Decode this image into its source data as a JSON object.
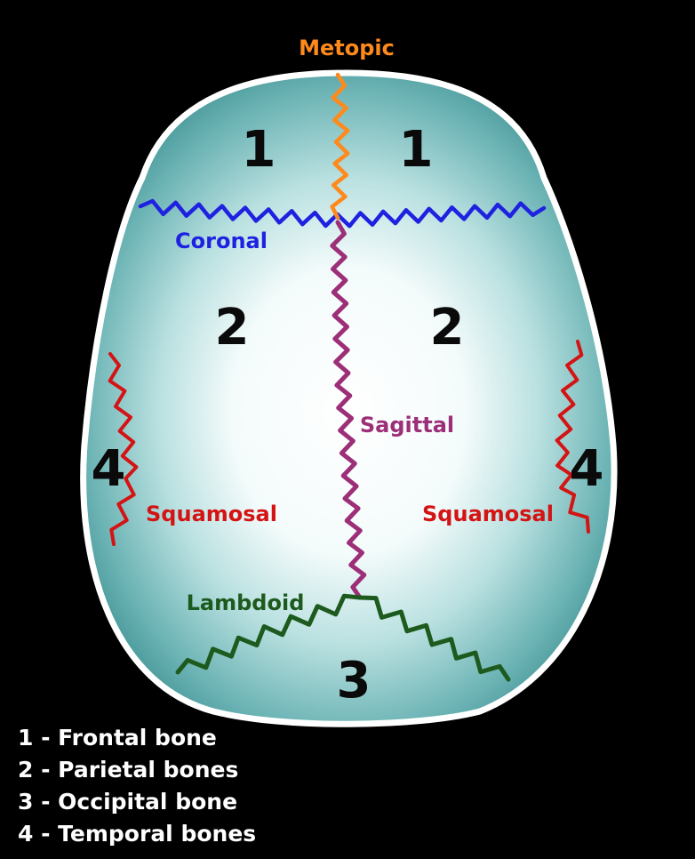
{
  "colors": {
    "background": "#000000",
    "skull_outline": "#ffffff",
    "skull_center": "#ffffff",
    "skull_edge": "#4a9ea0",
    "metopic": "#ff8a1c",
    "coronal": "#1e22e0",
    "sagittal": "#9c2f78",
    "squamosal": "#d41414",
    "lambdoid": "#1d5a1d",
    "bone_number": "#0a0a0a",
    "legend_text": "#ffffff"
  },
  "sutures": {
    "metopic": "Metopic",
    "coronal": "Coronal",
    "sagittal": "Sagittal",
    "squamosal_left": "Squamosal",
    "squamosal_right": "Squamosal",
    "lambdoid": "Lambdoid"
  },
  "bone_numbers": {
    "frontal_left": "1",
    "frontal_right": "1",
    "parietal_left": "2",
    "parietal_right": "2",
    "occipital": "3",
    "temporal_left": "4",
    "temporal_right": "4"
  },
  "legend": [
    "1 - Frontal bone",
    "2 - Parietal bones",
    "3 - Occipital bone",
    "4 - Temporal bones"
  ]
}
